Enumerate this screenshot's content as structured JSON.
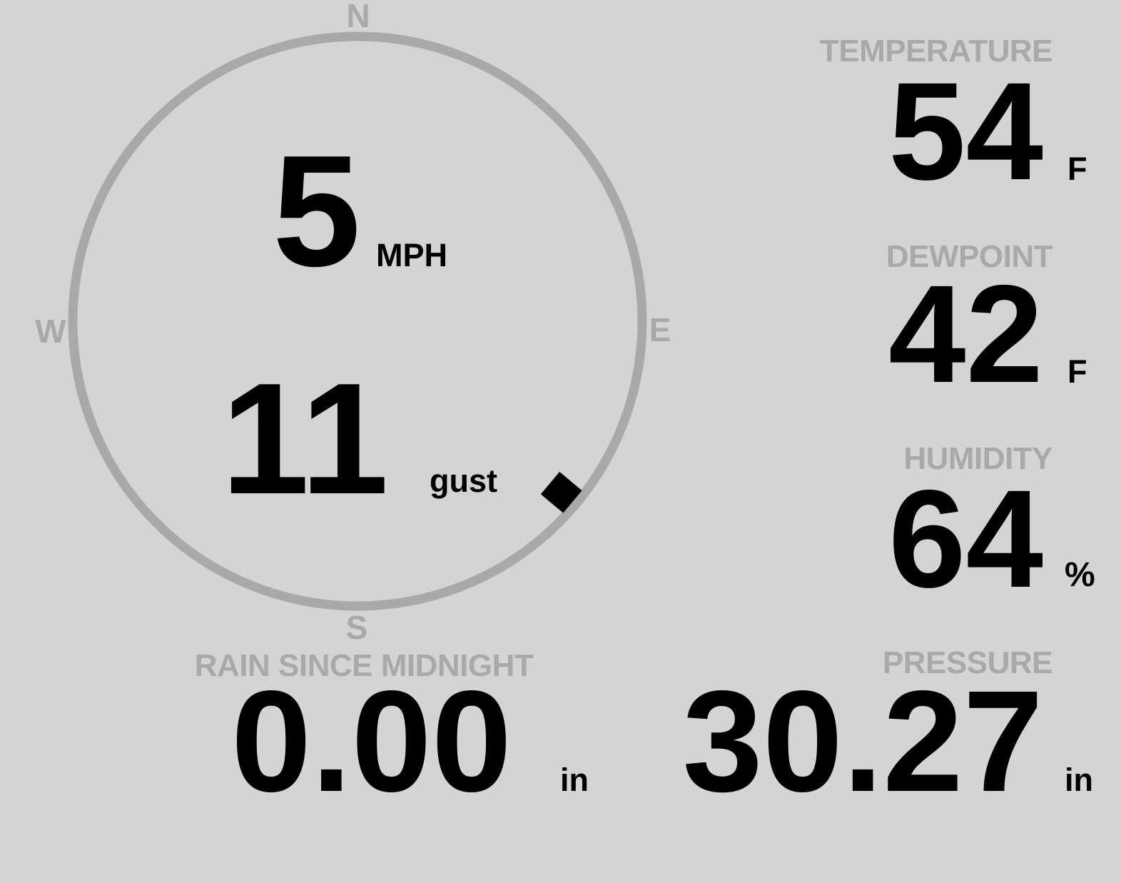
{
  "colors": {
    "background": "#d4d4d4",
    "muted": "#a9a9a9",
    "ink": "#000000"
  },
  "wind": {
    "compass": {
      "north": "N",
      "east": "E",
      "south": "S",
      "west": "W"
    },
    "speed": {
      "value": "5",
      "unit": "MPH"
    },
    "gust": {
      "value": "11",
      "unit": "gust"
    },
    "direction_deg": 130
  },
  "metrics": {
    "temperature": {
      "label": "TEMPERATURE",
      "value": "54",
      "unit": "F"
    },
    "dewpoint": {
      "label": "DEWPOINT",
      "value": "42",
      "unit": "F"
    },
    "humidity": {
      "label": "HUMIDITY",
      "value": "64",
      "unit": "%"
    },
    "rain": {
      "label": "RAIN SINCE MIDNIGHT",
      "value": "0.00",
      "unit": "in"
    },
    "pressure": {
      "label": "PRESSURE",
      "value": "30.27",
      "unit": "in"
    }
  }
}
